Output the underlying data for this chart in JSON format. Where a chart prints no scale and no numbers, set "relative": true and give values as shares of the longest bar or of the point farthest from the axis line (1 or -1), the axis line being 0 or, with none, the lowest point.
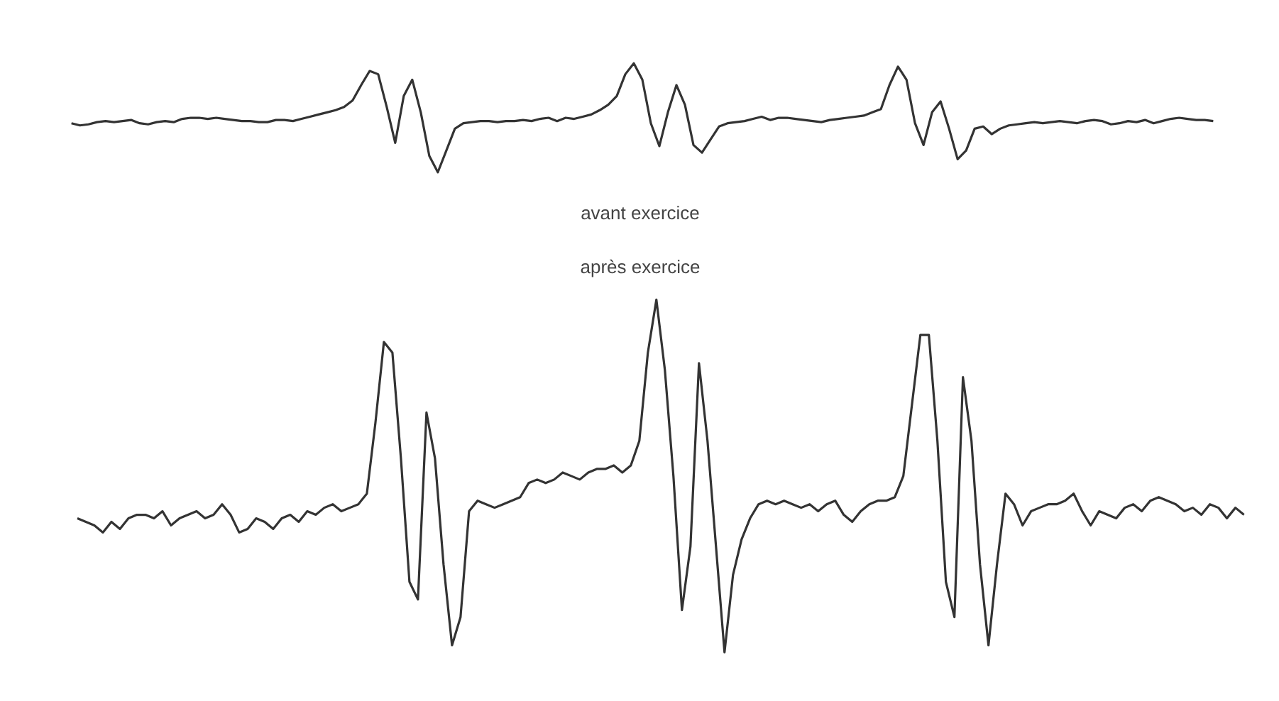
{
  "chart_data": [
    {
      "type": "line",
      "relative": true,
      "xlabel": "avant exercice",
      "color": "#333333",
      "categories": [
        null,
        null,
        null,
        null,
        null,
        null,
        null,
        null,
        null,
        null,
        null,
        null,
        null,
        null,
        null,
        null,
        null,
        null,
        null,
        null,
        null,
        null,
        null,
        null,
        null,
        null,
        null,
        null,
        null,
        null,
        null,
        null,
        null,
        null,
        null,
        null,
        null,
        null,
        null,
        null,
        null,
        null,
        null,
        null,
        null,
        null,
        null,
        null,
        null,
        null,
        null,
        null,
        null,
        null,
        null,
        null,
        null,
        null,
        null,
        null,
        null,
        null,
        null,
        null,
        null,
        null,
        null,
        null,
        null,
        null,
        null,
        null,
        null,
        null,
        null,
        null,
        null,
        null,
        null,
        null,
        null,
        null,
        null,
        null,
        null,
        null,
        null,
        null,
        null,
        null,
        null,
        null,
        null,
        null,
        null,
        null,
        null,
        null,
        null,
        null,
        null,
        null,
        null,
        null,
        null,
        null,
        null,
        null,
        null,
        null,
        null,
        null,
        null,
        null,
        null,
        null,
        null,
        null,
        null,
        null,
        null,
        null,
        null,
        null,
        null,
        null,
        null,
        null,
        null,
        null,
        null,
        null,
        null,
        null,
        null
      ],
      "values": [
        0.45,
        0.43,
        0.44,
        0.46,
        0.47,
        0.46,
        0.47,
        0.48,
        0.45,
        0.44,
        0.46,
        0.47,
        0.46,
        0.49,
        0.5,
        0.5,
        0.49,
        0.5,
        0.49,
        0.48,
        0.47,
        0.47,
        0.46,
        0.46,
        0.48,
        0.48,
        0.47,
        0.49,
        0.51,
        0.53,
        0.55,
        0.57,
        0.6,
        0.66,
        0.8,
        0.93,
        0.9,
        0.6,
        0.27,
        0.7,
        0.85,
        0.55,
        0.15,
        0.0,
        0.2,
        0.4,
        0.45,
        0.46,
        0.47,
        0.47,
        0.46,
        0.47,
        0.47,
        0.48,
        0.47,
        0.49,
        0.5,
        0.47,
        0.5,
        0.49,
        0.51,
        0.53,
        0.57,
        0.62,
        0.7,
        0.9,
        1.0,
        0.85,
        0.45,
        0.24,
        0.55,
        0.8,
        0.62,
        0.25,
        0.18,
        0.3,
        0.42,
        0.45,
        0.46,
        0.47,
        0.49,
        0.51,
        0.48,
        0.5,
        0.5,
        0.49,
        0.48,
        0.47,
        0.46,
        0.48,
        0.49,
        0.5,
        0.51,
        0.52,
        0.55,
        0.58,
        0.8,
        0.97,
        0.85,
        0.45,
        0.25,
        0.55,
        0.65,
        0.4,
        0.12,
        0.2,
        0.4,
        0.42,
        0.35,
        0.4,
        0.43,
        0.44,
        0.45,
        0.46,
        0.45,
        0.46,
        0.47,
        0.46,
        0.45,
        0.47,
        0.48,
        0.47,
        0.44,
        0.45,
        0.47,
        0.46,
        0.48,
        0.45,
        0.47,
        0.49,
        0.5,
        0.49,
        0.48,
        0.48,
        0.47
      ]
    },
    {
      "type": "line",
      "relative": true,
      "title": "après exercice",
      "color": "#333333",
      "categories": [
        null,
        null,
        null,
        null,
        null,
        null,
        null,
        null,
        null,
        null,
        null,
        null,
        null,
        null,
        null,
        null,
        null,
        null,
        null,
        null,
        null,
        null,
        null,
        null,
        null,
        null,
        null,
        null,
        null,
        null,
        null,
        null,
        null,
        null,
        null,
        null,
        null,
        null,
        null,
        null,
        null,
        null,
        null,
        null,
        null,
        null,
        null,
        null,
        null,
        null,
        null,
        null,
        null,
        null,
        null,
        null,
        null,
        null,
        null,
        null,
        null,
        null,
        null,
        null,
        null,
        null,
        null,
        null,
        null,
        null,
        null,
        null,
        null,
        null,
        null,
        null,
        null,
        null,
        null,
        null,
        null,
        null,
        null,
        null,
        null,
        null,
        null,
        null,
        null,
        null,
        null,
        null,
        null,
        null,
        null,
        null,
        null,
        null,
        null,
        null,
        null,
        null,
        null,
        null,
        null,
        null,
        null,
        null,
        null,
        null,
        null,
        null,
        null,
        null,
        null,
        null,
        null,
        null,
        null,
        null,
        null,
        null,
        null,
        null,
        null,
        null,
        null,
        null,
        null,
        null,
        null,
        null,
        null,
        null,
        null,
        null,
        null,
        null
      ],
      "values": [
        0.38,
        0.37,
        0.36,
        0.34,
        0.37,
        0.35,
        0.38,
        0.39,
        0.39,
        0.38,
        0.4,
        0.36,
        0.38,
        0.39,
        0.4,
        0.38,
        0.39,
        0.42,
        0.39,
        0.34,
        0.35,
        0.38,
        0.37,
        0.35,
        0.38,
        0.39,
        0.37,
        0.4,
        0.39,
        0.41,
        0.42,
        0.4,
        0.41,
        0.42,
        0.45,
        0.65,
        0.88,
        0.85,
        0.55,
        0.2,
        0.15,
        0.68,
        0.55,
        0.25,
        0.02,
        0.1,
        0.4,
        0.43,
        0.42,
        0.41,
        0.42,
        0.43,
        0.44,
        0.48,
        0.49,
        0.48,
        0.49,
        0.51,
        0.5,
        0.49,
        0.51,
        0.52,
        0.52,
        0.53,
        0.51,
        0.53,
        0.6,
        0.85,
        1.0,
        0.8,
        0.5,
        0.12,
        0.3,
        0.82,
        0.6,
        0.3,
        0.0,
        0.22,
        0.32,
        0.38,
        0.42,
        0.43,
        0.42,
        0.43,
        0.42,
        0.41,
        0.42,
        0.4,
        0.42,
        0.43,
        0.39,
        0.37,
        0.4,
        0.42,
        0.43,
        0.43,
        0.44,
        0.5,
        0.7,
        0.9,
        0.9,
        0.6,
        0.2,
        0.1,
        0.78,
        0.6,
        0.25,
        0.02,
        0.25,
        0.45,
        0.42,
        0.36,
        0.4,
        0.41,
        0.42,
        0.42,
        0.43,
        0.45,
        0.4,
        0.36,
        0.4,
        0.39,
        0.38,
        0.41,
        0.42,
        0.4,
        0.43,
        0.44,
        0.43,
        0.42,
        0.4,
        0.41,
        0.39,
        0.42,
        0.41,
        0.38,
        0.41,
        0.39
      ]
    }
  ]
}
